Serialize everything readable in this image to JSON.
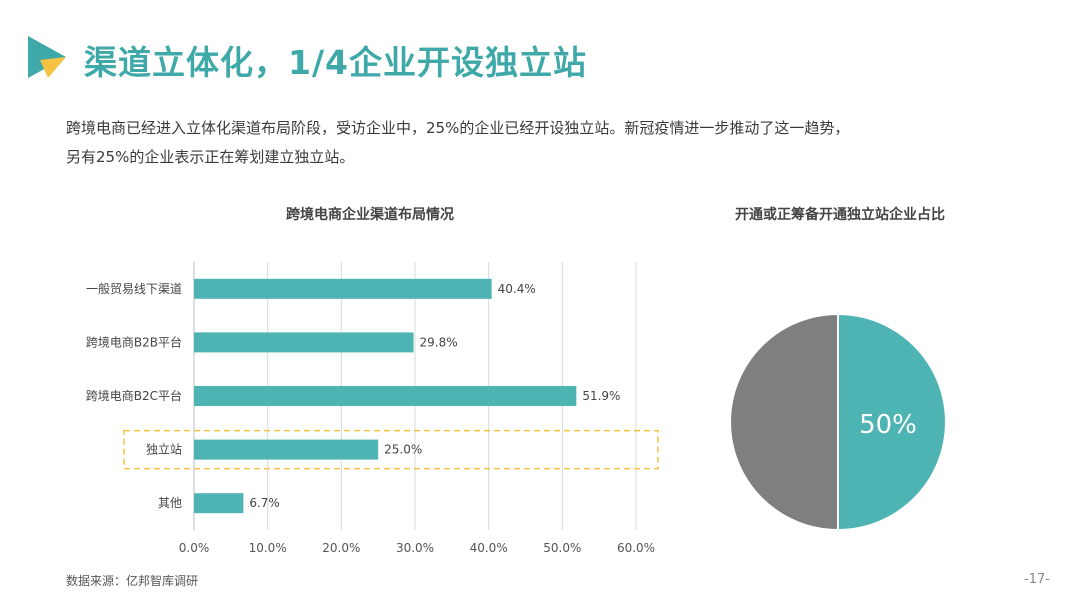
{
  "header": {
    "title": "渠道立体化，1/4企业开设独立站"
  },
  "intro": {
    "line1": "跨境电商已经进入立体化渠道布局阶段，受访企业中，25%的企业已经开设独立站。新冠疫情进一步推动了这一趋势，",
    "line2": "另有25%的企业表示正在筹划建立独立站。"
  },
  "colors": {
    "accent": "#4db3b3",
    "title": "#3fa9a9",
    "pie_other": "#7f7f7f",
    "highlight_box": "#f5c242",
    "logo_teal": "#3fa9a9",
    "logo_yellow": "#f5c242"
  },
  "chart_data": [
    {
      "type": "bar",
      "orientation": "horizontal",
      "title": "跨境电商企业渠道布局情况",
      "categories": [
        "一般贸易线下渠道",
        "跨境电商B2B平台",
        "跨境电商B2C平台",
        "独立站",
        "其他"
      ],
      "values": [
        40.4,
        29.8,
        51.9,
        25.0,
        6.7
      ],
      "value_labels": [
        "40.4%",
        "29.8%",
        "51.9%",
        "25.0%",
        "6.7%"
      ],
      "xlim": [
        0,
        60
      ],
      "xticks": [
        "0.0%",
        "10.0%",
        "20.0%",
        "30.0%",
        "40.0%",
        "50.0%",
        "60.0%"
      ],
      "grid": true,
      "highlighted_category": "独立站"
    },
    {
      "type": "pie",
      "title": "开通或正筹备开通独立站企业占比",
      "values": [
        50,
        50
      ],
      "slice_colors": [
        "#4db3b3",
        "#7f7f7f"
      ],
      "center_label": "50%"
    }
  ],
  "footer": {
    "source": "数据来源：亿邦智库调研",
    "page": "-17-"
  }
}
